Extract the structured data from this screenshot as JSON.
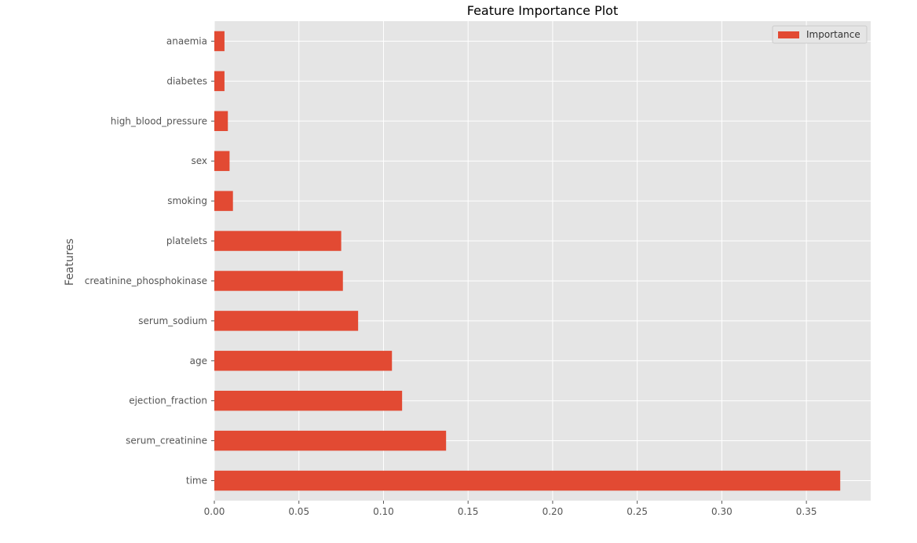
{
  "chart_data": {
    "type": "bar",
    "orientation": "horizontal",
    "title": "Feature Importance Plot",
    "xlabel": "",
    "ylabel": "Features",
    "xlim": [
      0,
      0.388
    ],
    "xticks": [
      "0.00",
      "0.05",
      "0.10",
      "0.15",
      "0.20",
      "0.25",
      "0.30",
      "0.35"
    ],
    "xtick_values": [
      0,
      0.05,
      0.1,
      0.15,
      0.2,
      0.25,
      0.3,
      0.35
    ],
    "categories": [
      "time",
      "serum_creatinine",
      "ejection_fraction",
      "age",
      "serum_sodium",
      "creatinine_phosphokinase",
      "platelets",
      "smoking",
      "sex",
      "high_blood_pressure",
      "diabetes",
      "anaemia"
    ],
    "series": [
      {
        "name": "Importance",
        "color": "#E24A33",
        "values": [
          0.37,
          0.137,
          0.111,
          0.105,
          0.085,
          0.076,
          0.075,
          0.011,
          0.009,
          0.008,
          0.006,
          0.006
        ]
      }
    ],
    "grid": true,
    "legend": "top-right"
  },
  "colors": {
    "plot_background": "#E5E5E5",
    "grid": "#FFFFFF",
    "bar": "#E24A33"
  }
}
